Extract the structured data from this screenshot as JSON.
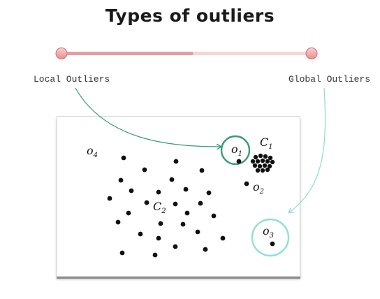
{
  "title": "Types of outliers",
  "slider": {
    "left_label": "Local Outliers",
    "right_label": "Global Outliers"
  },
  "figure": {
    "labels": {
      "o1": "o",
      "o1_sub": "1",
      "o2": "o",
      "o2_sub": "2",
      "o3": "o",
      "o3_sub": "3",
      "o4": "o",
      "o4_sub": "4",
      "c1": "C",
      "c1_sub": "1",
      "c2": "C",
      "c2_sub": "2"
    }
  },
  "colors": {
    "slider_track_left": "#e8a3a6",
    "slider_track_right": "#f4d4d4",
    "slider_knob": "#f2a5a5",
    "local_accent": "#3a9a7a",
    "global_accent": "#8fe0d4",
    "point": "#111111"
  }
}
